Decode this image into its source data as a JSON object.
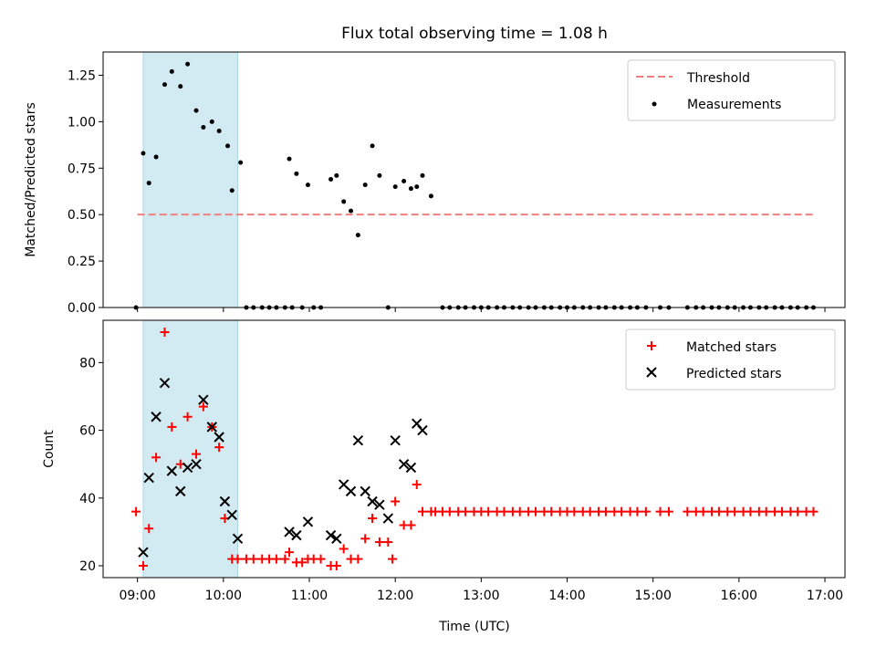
{
  "figure": {
    "title": "Flux total observing time = 1.08 h",
    "xlabel": "Time (UTC)"
  },
  "colors": {
    "threshold": "#f07f7f",
    "measurements": "#000000",
    "matched": "#ff0000",
    "predicted": "#000000",
    "shade": "#add8e6"
  },
  "chart_data": [
    {
      "type": "scatter",
      "ylabel": "Matched/Predicted stars",
      "xlim": [
        "08:36",
        "17:14"
      ],
      "ylim": [
        0,
        1.375
      ],
      "y_ticks": [
        0.0,
        0.25,
        0.5,
        0.75,
        1.0,
        1.25
      ],
      "y_tick_labels": [
        "0.00",
        "0.25",
        "0.50",
        "0.75",
        "1.00",
        "1.25"
      ],
      "x_ticks": [
        "09:00",
        "10:00",
        "11:00",
        "12:00",
        "13:00",
        "14:00",
        "15:00",
        "16:00",
        "17:00"
      ],
      "x_tick_labels_shown": false,
      "legend": {
        "position": "top-right",
        "entries": [
          "Threshold",
          "Measurements"
        ]
      },
      "shaded_region": {
        "x_start": "09:04",
        "x_end": "10:10",
        "color": "light blue"
      },
      "threshold": {
        "name": "Threshold",
        "y": 0.5,
        "x_start": "09:00",
        "x_end": "16:53",
        "style": "dashed"
      },
      "series": [
        {
          "name": "Measurements",
          "marker": "dot",
          "points": [
            [
              "08:59",
              0.0
            ],
            [
              "09:04",
              0.83
            ],
            [
              "09:08",
              0.67
            ],
            [
              "09:13",
              0.81
            ],
            [
              "09:19",
              1.2
            ],
            [
              "09:24",
              1.27
            ],
            [
              "09:30",
              1.19
            ],
            [
              "09:35",
              1.31
            ],
            [
              "09:41",
              1.06
            ],
            [
              "09:46",
              0.97
            ],
            [
              "09:52",
              1.0
            ],
            [
              "09:57",
              0.95
            ],
            [
              "10:03",
              0.87
            ],
            [
              "10:06",
              0.63
            ],
            [
              "10:12",
              0.78
            ],
            [
              "10:16",
              0.0
            ],
            [
              "10:21",
              0.0
            ],
            [
              "10:27",
              0.0
            ],
            [
              "10:32",
              0.0
            ],
            [
              "10:37",
              0.0
            ],
            [
              "10:43",
              0.0
            ],
            [
              "10:48",
              0.0
            ],
            [
              "10:46",
              0.8
            ],
            [
              "10:51",
              0.72
            ],
            [
              "10:55",
              0.0
            ],
            [
              "10:59",
              0.66
            ],
            [
              "11:03",
              0.0
            ],
            [
              "11:08",
              0.0
            ],
            [
              "11:15",
              0.69
            ],
            [
              "11:19",
              0.71
            ],
            [
              "11:24",
              0.57
            ],
            [
              "11:29",
              0.52
            ],
            [
              "11:34",
              0.39
            ],
            [
              "11:39",
              0.66
            ],
            [
              "11:44",
              0.87
            ],
            [
              "11:49",
              0.71
            ],
            [
              "11:55",
              0.0
            ],
            [
              "12:00",
              0.65
            ],
            [
              "12:06",
              0.68
            ],
            [
              "12:11",
              0.64
            ],
            [
              "12:15",
              0.65
            ],
            [
              "12:19",
              0.71
            ],
            [
              "12:25",
              0.6
            ],
            [
              "12:33",
              0.0
            ],
            [
              "12:38",
              0.0
            ],
            [
              "12:44",
              0.0
            ],
            [
              "12:49",
              0.0
            ],
            [
              "12:55",
              0.0
            ],
            [
              "13:00",
              0.0
            ],
            [
              "13:05",
              0.0
            ],
            [
              "13:11",
              0.0
            ],
            [
              "13:16",
              0.0
            ],
            [
              "13:22",
              0.0
            ],
            [
              "13:27",
              0.0
            ],
            [
              "13:33",
              0.0
            ],
            [
              "13:38",
              0.0
            ],
            [
              "13:44",
              0.0
            ],
            [
              "13:49",
              0.0
            ],
            [
              "13:55",
              0.0
            ],
            [
              "14:00",
              0.0
            ],
            [
              "14:05",
              0.0
            ],
            [
              "14:11",
              0.0
            ],
            [
              "14:16",
              0.0
            ],
            [
              "14:22",
              0.0
            ],
            [
              "14:27",
              0.0
            ],
            [
              "14:33",
              0.0
            ],
            [
              "14:38",
              0.0
            ],
            [
              "14:44",
              0.0
            ],
            [
              "14:49",
              0.0
            ],
            [
              "14:55",
              0.0
            ],
            [
              "15:05",
              0.0
            ],
            [
              "15:11",
              0.0
            ],
            [
              "15:24",
              0.0
            ],
            [
              "15:30",
              0.0
            ],
            [
              "15:35",
              0.0
            ],
            [
              "15:41",
              0.0
            ],
            [
              "15:46",
              0.0
            ],
            [
              "15:52",
              0.0
            ],
            [
              "15:57",
              0.0
            ],
            [
              "16:03",
              0.0
            ],
            [
              "16:08",
              0.0
            ],
            [
              "16:14",
              0.0
            ],
            [
              "16:19",
              0.0
            ],
            [
              "16:25",
              0.0
            ],
            [
              "16:30",
              0.0
            ],
            [
              "16:36",
              0.0
            ],
            [
              "16:41",
              0.0
            ],
            [
              "16:47",
              0.0
            ],
            [
              "16:52",
              0.0
            ]
          ]
        }
      ]
    },
    {
      "type": "scatter",
      "ylabel": "Count",
      "xlabel": "Time (UTC)",
      "xlim": [
        "08:36",
        "17:14"
      ],
      "ylim": [
        16.5,
        92.5
      ],
      "y_ticks": [
        20,
        40,
        60,
        80
      ],
      "y_tick_labels": [
        "20",
        "40",
        "60",
        "80"
      ],
      "x_ticks": [
        "09:00",
        "10:00",
        "11:00",
        "12:00",
        "13:00",
        "14:00",
        "15:00",
        "16:00",
        "17:00"
      ],
      "x_tick_labels": [
        "09:00",
        "10:00",
        "11:00",
        "12:00",
        "13:00",
        "14:00",
        "15:00",
        "16:00",
        "17:00"
      ],
      "legend": {
        "position": "top-right",
        "entries": [
          "Matched stars",
          "Predicted stars"
        ]
      },
      "shaded_region": {
        "x_start": "09:04",
        "x_end": "10:10",
        "color": "light blue"
      },
      "series": [
        {
          "name": "Matched stars",
          "marker": "plus",
          "points": [
            [
              "08:59",
              36
            ],
            [
              "09:04",
              20
            ],
            [
              "09:08",
              31
            ],
            [
              "09:13",
              52
            ],
            [
              "09:19",
              89
            ],
            [
              "09:24",
              61
            ],
            [
              "09:30",
              50
            ],
            [
              "09:35",
              64
            ],
            [
              "09:41",
              53
            ],
            [
              "09:46",
              67
            ],
            [
              "09:52",
              61
            ],
            [
              "09:57",
              55
            ],
            [
              "10:01",
              34
            ],
            [
              "10:06",
              22
            ],
            [
              "10:10",
              22
            ],
            [
              "10:16",
              22
            ],
            [
              "10:21",
              22
            ],
            [
              "10:27",
              22
            ],
            [
              "10:32",
              22
            ],
            [
              "10:37",
              22
            ],
            [
              "10:43",
              22
            ],
            [
              "10:46",
              24
            ],
            [
              "10:51",
              21
            ],
            [
              "10:55",
              21
            ],
            [
              "10:59",
              22
            ],
            [
              "11:03",
              22
            ],
            [
              "11:08",
              22
            ],
            [
              "11:15",
              20
            ],
            [
              "11:19",
              20
            ],
            [
              "11:24",
              25
            ],
            [
              "11:29",
              22
            ],
            [
              "11:34",
              22
            ],
            [
              "11:39",
              28
            ],
            [
              "11:44",
              34
            ],
            [
              "11:49",
              27
            ],
            [
              "11:55",
              27
            ],
            [
              "11:58",
              22
            ],
            [
              "12:00",
              39
            ],
            [
              "12:06",
              32
            ],
            [
              "12:11",
              32
            ],
            [
              "12:15",
              44
            ],
            [
              "12:19",
              36
            ],
            [
              "12:25",
              36
            ],
            [
              "12:28",
              36
            ],
            [
              "12:33",
              36
            ],
            [
              "12:38",
              36
            ],
            [
              "12:44",
              36
            ],
            [
              "12:49",
              36
            ],
            [
              "12:55",
              36
            ],
            [
              "13:00",
              36
            ],
            [
              "13:05",
              36
            ],
            [
              "13:11",
              36
            ],
            [
              "13:16",
              36
            ],
            [
              "13:22",
              36
            ],
            [
              "13:27",
              36
            ],
            [
              "13:33",
              36
            ],
            [
              "13:38",
              36
            ],
            [
              "13:44",
              36
            ],
            [
              "13:49",
              36
            ],
            [
              "13:55",
              36
            ],
            [
              "14:00",
              36
            ],
            [
              "14:05",
              36
            ],
            [
              "14:11",
              36
            ],
            [
              "14:16",
              36
            ],
            [
              "14:22",
              36
            ],
            [
              "14:27",
              36
            ],
            [
              "14:33",
              36
            ],
            [
              "14:38",
              36
            ],
            [
              "14:44",
              36
            ],
            [
              "14:49",
              36
            ],
            [
              "14:55",
              36
            ],
            [
              "15:05",
              36
            ],
            [
              "15:11",
              36
            ],
            [
              "15:24",
              36
            ],
            [
              "15:30",
              36
            ],
            [
              "15:35",
              36
            ],
            [
              "15:41",
              36
            ],
            [
              "15:46",
              36
            ],
            [
              "15:52",
              36
            ],
            [
              "15:57",
              36
            ],
            [
              "16:03",
              36
            ],
            [
              "16:08",
              36
            ],
            [
              "16:14",
              36
            ],
            [
              "16:19",
              36
            ],
            [
              "16:25",
              36
            ],
            [
              "16:30",
              36
            ],
            [
              "16:36",
              36
            ],
            [
              "16:41",
              36
            ],
            [
              "16:47",
              36
            ],
            [
              "16:52",
              36
            ]
          ]
        },
        {
          "name": "Predicted stars",
          "marker": "x",
          "points": [
            [
              "09:04",
              24
            ],
            [
              "09:08",
              46
            ],
            [
              "09:13",
              64
            ],
            [
              "09:19",
              74
            ],
            [
              "09:24",
              48
            ],
            [
              "09:30",
              42
            ],
            [
              "09:35",
              49
            ],
            [
              "09:41",
              50
            ],
            [
              "09:46",
              69
            ],
            [
              "09:52",
              61
            ],
            [
              "09:57",
              58
            ],
            [
              "10:01",
              39
            ],
            [
              "10:06",
              35
            ],
            [
              "10:10",
              28
            ],
            [
              "10:46",
              30
            ],
            [
              "10:51",
              29
            ],
            [
              "10:59",
              33
            ],
            [
              "11:15",
              29
            ],
            [
              "11:19",
              28
            ],
            [
              "11:24",
              44
            ],
            [
              "11:29",
              42
            ],
            [
              "11:34",
              57
            ],
            [
              "11:39",
              42
            ],
            [
              "11:44",
              39
            ],
            [
              "11:49",
              38
            ],
            [
              "11:55",
              34
            ],
            [
              "12:00",
              57
            ],
            [
              "12:06",
              50
            ],
            [
              "12:11",
              49
            ],
            [
              "12:15",
              62
            ],
            [
              "12:19",
              60
            ]
          ]
        }
      ]
    }
  ]
}
